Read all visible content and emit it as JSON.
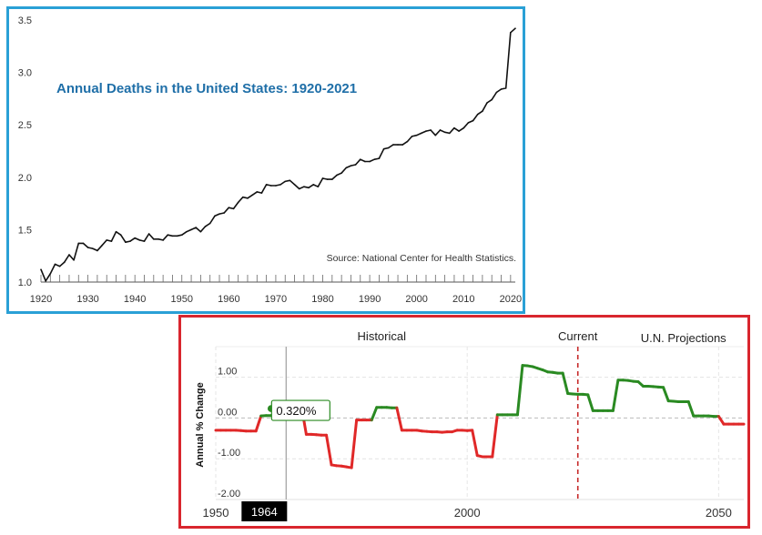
{
  "chart_data": [
    {
      "type": "line",
      "title": "Annual Deaths in the United States: 1920-2021",
      "source": "Source: National Center for Health Statistics.",
      "xlim": [
        1920,
        2021
      ],
      "ylim": [
        1.0,
        3.5
      ],
      "x_ticks": [
        "1920",
        "1930",
        "1940",
        "1950",
        "1960",
        "1970",
        "1980",
        "1990",
        "2000",
        "2010",
        "2020"
      ],
      "x_tick_values": [
        1920,
        1930,
        1940,
        1950,
        1960,
        1970,
        1980,
        1990,
        2000,
        2010,
        2020
      ],
      "y_ticks": [
        "1.0",
        "1.5",
        "2.0",
        "2.5",
        "3.0",
        "3.5"
      ],
      "y_tick_values": [
        1.0,
        1.5,
        2.0,
        2.5,
        3.0,
        3.5
      ],
      "grid": false,
      "colors": {
        "line": "#111111",
        "title": "#1f6fa8",
        "frame": "#2aa0d6"
      },
      "series": [
        {
          "x": [
            1920,
            1921,
            1922,
            1923,
            1924,
            1925,
            1926,
            1927,
            1928,
            1929,
            1930,
            1931,
            1932,
            1933,
            1934,
            1935,
            1936,
            1937,
            1938,
            1939,
            1940,
            1941,
            1942,
            1943,
            1944,
            1945,
            1946,
            1947,
            1948,
            1949,
            1950,
            1951,
            1952,
            1953,
            1954,
            1955,
            1956,
            1957,
            1958,
            1959,
            1960,
            1961,
            1962,
            1963,
            1964,
            1965,
            1966,
            1967,
            1968,
            1969,
            1970,
            1971,
            1972,
            1973,
            1974,
            1975,
            1976,
            1977,
            1978,
            1979,
            1980,
            1981,
            1982,
            1983,
            1984,
            1985,
            1986,
            1987,
            1988,
            1989,
            1990,
            1991,
            1992,
            1993,
            1994,
            1995,
            1996,
            1997,
            1998,
            1999,
            2000,
            2001,
            2002,
            2003,
            2004,
            2005,
            2006,
            2007,
            2008,
            2009,
            2010,
            2011,
            2012,
            2013,
            2014,
            2015,
            2016,
            2017,
            2018,
            2019,
            2020,
            2021
          ],
          "values": [
            1.12,
            1.01,
            1.08,
            1.17,
            1.15,
            1.19,
            1.26,
            1.21,
            1.37,
            1.37,
            1.33,
            1.32,
            1.3,
            1.35,
            1.4,
            1.39,
            1.48,
            1.45,
            1.38,
            1.39,
            1.42,
            1.4,
            1.39,
            1.46,
            1.41,
            1.41,
            1.4,
            1.45,
            1.44,
            1.44,
            1.45,
            1.48,
            1.5,
            1.52,
            1.48,
            1.53,
            1.56,
            1.63,
            1.65,
            1.66,
            1.71,
            1.7,
            1.76,
            1.81,
            1.8,
            1.83,
            1.86,
            1.85,
            1.93,
            1.92,
            1.92,
            1.93,
            1.96,
            1.97,
            1.93,
            1.89,
            1.91,
            1.9,
            1.93,
            1.91,
            1.99,
            1.98,
            1.98,
            2.02,
            2.04,
            2.09,
            2.11,
            2.12,
            2.17,
            2.15,
            2.15,
            2.17,
            2.18,
            2.27,
            2.28,
            2.31,
            2.31,
            2.31,
            2.34,
            2.39,
            2.4,
            2.42,
            2.44,
            2.45,
            2.4,
            2.45,
            2.43,
            2.42,
            2.47,
            2.44,
            2.47,
            2.52,
            2.54,
            2.6,
            2.63,
            2.71,
            2.74,
            2.81,
            2.84,
            2.85,
            3.38,
            3.42
          ]
        }
      ]
    },
    {
      "type": "line",
      "ylabel": "Annual % Change",
      "xlim": [
        1950,
        2055
      ],
      "ylim": [
        -2.0,
        1.75
      ],
      "x_ticks": [
        "1950",
        "2000",
        "2050"
      ],
      "x_tick_values": [
        1950,
        2000,
        2050
      ],
      "y_ticks": [
        "1.00",
        "0.00",
        "-1.00",
        "-2.00"
      ],
      "y_tick_values": [
        1.0,
        0.0,
        -1.0,
        -2.0
      ],
      "grid": true,
      "sections": [
        "Historical",
        "Current",
        "U.N. Projections"
      ],
      "current_year": 2022,
      "highlight": {
        "year": 1964,
        "year_label": "1964",
        "value": 0.32,
        "value_label": "0.320%"
      },
      "colors": {
        "positive": "#2a8a22",
        "negative": "#e02828",
        "current_line": "#c62828",
        "frame": "#d9262e"
      },
      "series": [
        {
          "x": [
            1950,
            1951,
            1952,
            1953,
            1954,
            1955,
            1956,
            1957,
            1958,
            1959,
            1960,
            1961,
            1962,
            1963,
            1964,
            1965,
            1966,
            1967,
            1968,
            1969,
            1970,
            1971,
            1972,
            1973,
            1974,
            1975,
            1976,
            1977,
            1978,
            1979,
            1980,
            1981,
            1982,
            1983,
            1984,
            1985,
            1986,
            1987,
            1988,
            1989,
            1990,
            1991,
            1992,
            1993,
            1994,
            1995,
            1996,
            1997,
            1998,
            1999,
            2000,
            2001,
            2002,
            2003,
            2004,
            2005,
            2006,
            2007,
            2008,
            2009,
            2010,
            2011,
            2012,
            2013,
            2014,
            2015,
            2016,
            2017,
            2018,
            2019,
            2020,
            2021,
            2022,
            2023,
            2024,
            2025,
            2026,
            2027,
            2028,
            2029,
            2030,
            2031,
            2032,
            2033,
            2034,
            2035,
            2036,
            2037,
            2038,
            2039,
            2040,
            2041,
            2042,
            2043,
            2044,
            2045,
            2046,
            2047,
            2048,
            2049,
            2050,
            2051,
            2052,
            2053,
            2054,
            2055
          ],
          "values": [
            -0.3,
            -0.3,
            -0.3,
            -0.3,
            -0.3,
            -0.31,
            -0.32,
            -0.32,
            -0.32,
            0.05,
            0.06,
            0.06,
            0.07,
            0.07,
            0.32,
            0.32,
            0.32,
            0.32,
            -0.4,
            -0.4,
            -0.41,
            -0.42,
            -0.42,
            -1.15,
            -1.17,
            -1.18,
            -1.2,
            -1.22,
            -0.05,
            -0.05,
            -0.05,
            -0.05,
            0.26,
            0.26,
            0.26,
            0.25,
            0.25,
            -0.3,
            -0.3,
            -0.3,
            -0.3,
            -0.32,
            -0.33,
            -0.34,
            -0.34,
            -0.35,
            -0.34,
            -0.34,
            -0.3,
            -0.3,
            -0.31,
            -0.3,
            -0.92,
            -0.95,
            -0.95,
            -0.95,
            0.08,
            0.08,
            0.08,
            0.08,
            0.08,
            1.29,
            1.28,
            1.26,
            1.22,
            1.18,
            1.13,
            1.12,
            1.1,
            1.1,
            0.6,
            0.59,
            0.58,
            0.58,
            0.57,
            0.18,
            0.18,
            0.18,
            0.18,
            0.18,
            0.93,
            0.93,
            0.92,
            0.9,
            0.89,
            0.78,
            0.78,
            0.77,
            0.76,
            0.75,
            0.42,
            0.41,
            0.4,
            0.4,
            0.4,
            0.05,
            0.05,
            0.05,
            0.05,
            0.04,
            0.04,
            -0.15,
            -0.15,
            -0.15,
            -0.15,
            -0.15
          ]
        }
      ]
    }
  ]
}
